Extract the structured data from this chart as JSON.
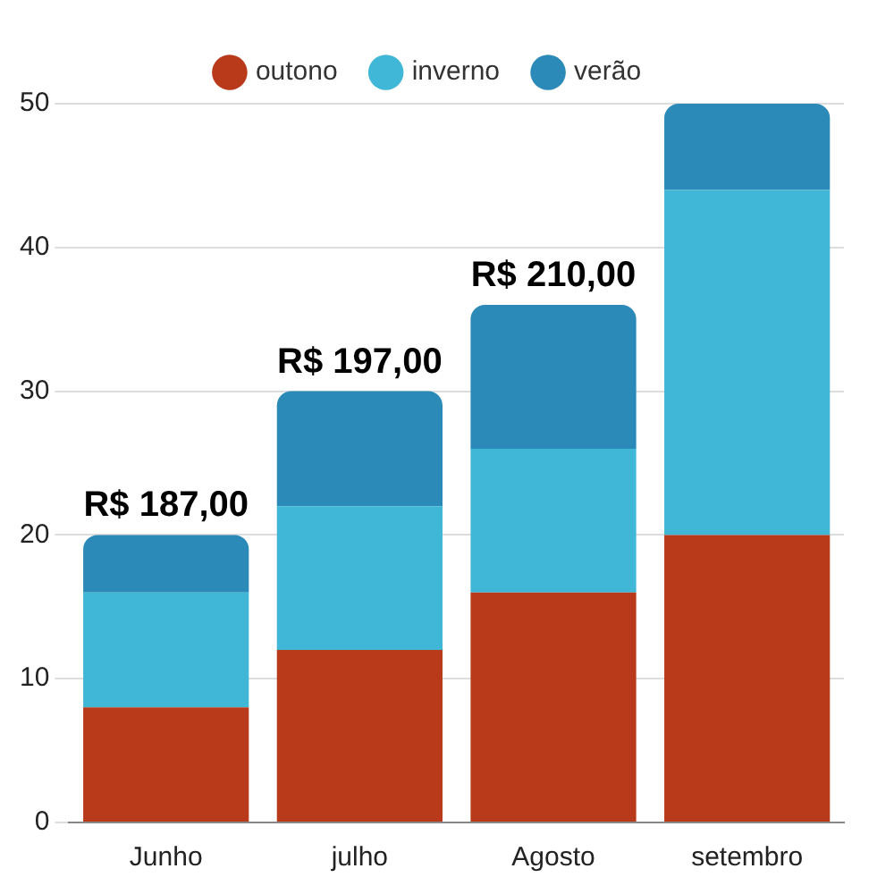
{
  "chart_data": {
    "type": "bar",
    "stacked": true,
    "categories": [
      "Junho",
      "julho",
      "Agosto",
      "setembro"
    ],
    "series": [
      {
        "name": "outono",
        "color": "#b83a1a",
        "values": [
          8,
          12,
          16,
          20
        ]
      },
      {
        "name": "inverno",
        "color": "#40b7d6",
        "values": [
          8,
          10,
          10,
          24
        ]
      },
      {
        "name": "verão",
        "color": "#2b8ab8",
        "values": [
          4,
          8,
          10,
          6
        ]
      }
    ],
    "totals": [
      "R$ 187,00",
      "R$ 197,00",
      "R$ 210,00",
      null
    ],
    "ylim": [
      0,
      50
    ],
    "yticks": [
      0,
      10,
      20,
      30,
      40,
      50
    ],
    "grid": "y",
    "legend": "top"
  }
}
